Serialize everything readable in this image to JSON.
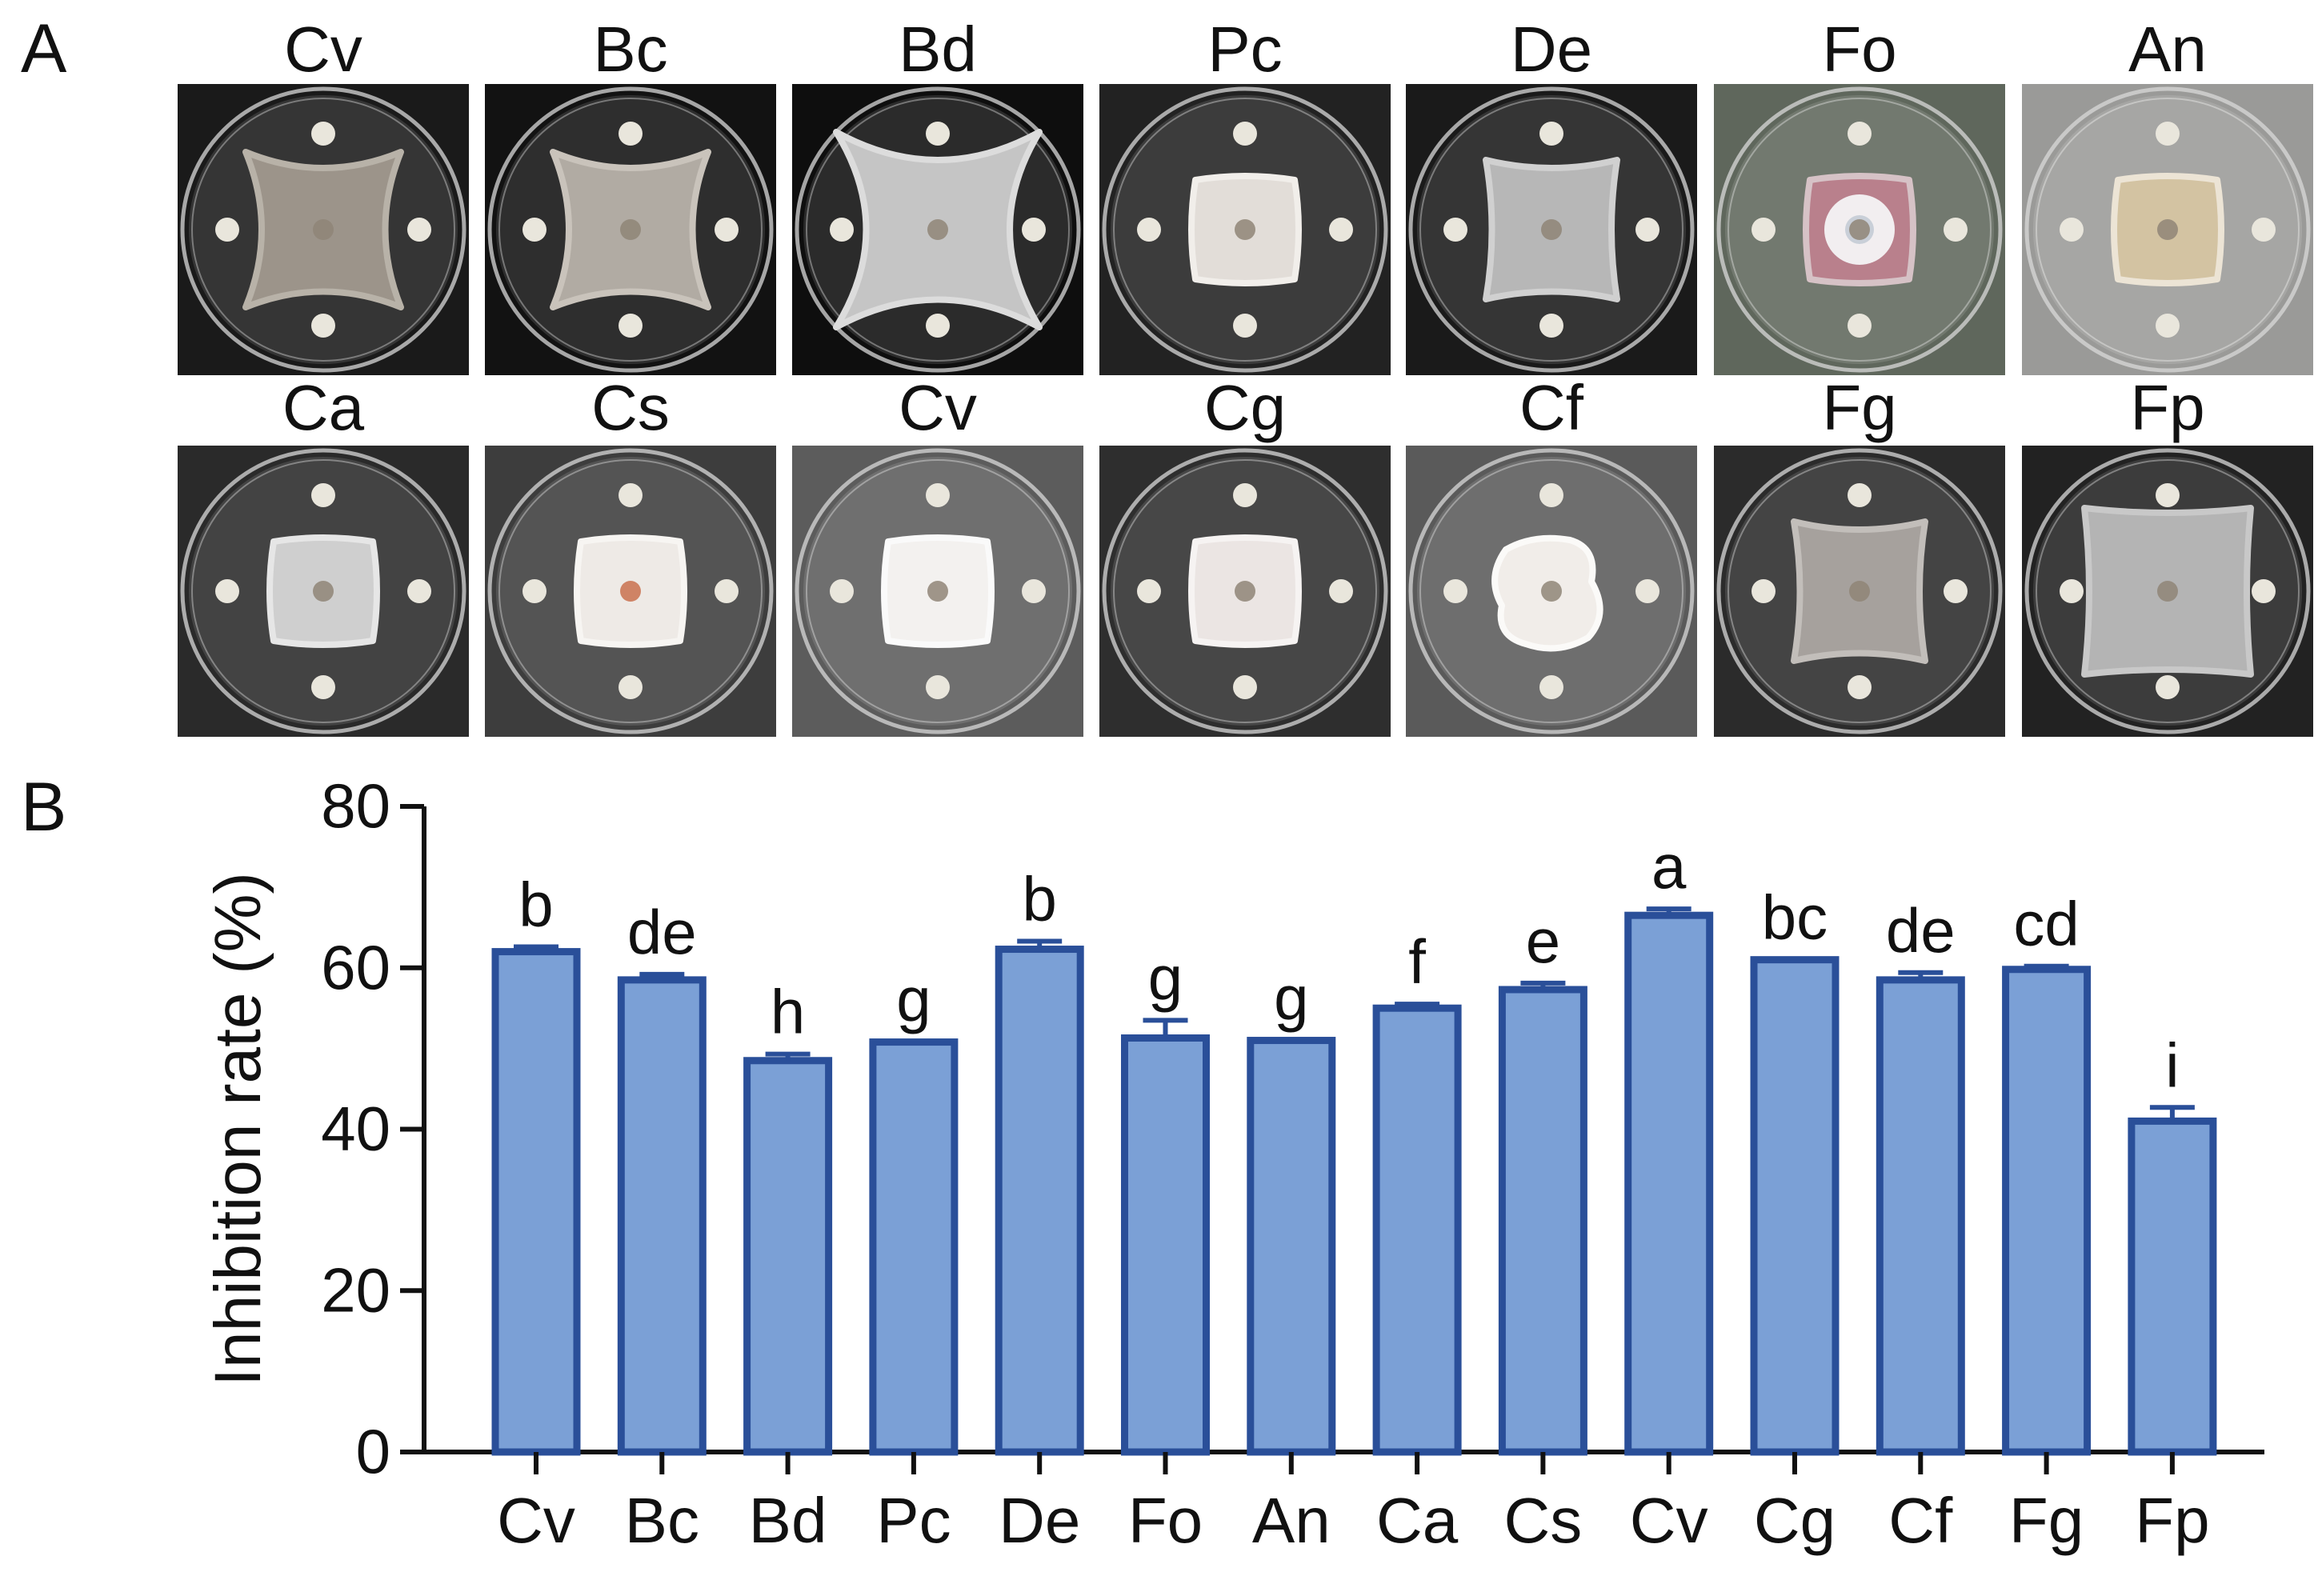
{
  "panels": {
    "a_label": "A",
    "b_label": "B"
  },
  "plates": {
    "row1": [
      {
        "label": "Cv",
        "colony": "star-grey",
        "colony_color": "#9c948a",
        "edge_color": "#b8b2a8",
        "bg": "#1a1a1a"
      },
      {
        "label": "Bc",
        "colony": "star-grey",
        "colony_color": "#b1aba3",
        "edge_color": "#c9c3bb",
        "bg": "#121212"
      },
      {
        "label": "Bd",
        "colony": "star-fluffy",
        "colony_color": "#c5c5c5",
        "edge_color": "#dcdcdc",
        "bg": "#0e0e0e"
      },
      {
        "label": "Pc",
        "colony": "square",
        "colony_color": "#e2ddd8",
        "edge_color": "#f1eeea",
        "bg": "#222222"
      },
      {
        "label": "De",
        "colony": "square-fluffy",
        "colony_color": "#b7b7b7",
        "edge_color": "#d0d0d0",
        "bg": "#1a1a1a"
      },
      {
        "label": "Fo",
        "colony": "pink-ring",
        "colony_color": "#b9808c",
        "edge_color": "#d6c2c6",
        "bg": "#5f675c"
      },
      {
        "label": "An",
        "colony": "tan",
        "colony_color": "#d3c3a2",
        "edge_color": "#ece4d5",
        "bg": "#9a9a98"
      }
    ],
    "row2": [
      {
        "label": "Ca",
        "colony": "square",
        "colony_color": "#cfcfcf",
        "edge_color": "#e6e6e6",
        "bg": "#2a2a2a"
      },
      {
        "label": "Cs",
        "colony": "square-red",
        "colony_color": "#eeeae6",
        "edge_color": "#f7f5f2",
        "bg": "#3d3d3d"
      },
      {
        "label": "Cv",
        "colony": "square",
        "colony_color": "#f3f1ef",
        "edge_color": "#fafafa",
        "bg": "#5c5c5c"
      },
      {
        "label": "Cg",
        "colony": "square",
        "colony_color": "#ebe5e3",
        "edge_color": "#f6f3f2",
        "bg": "#2e2e2e"
      },
      {
        "label": "Cf",
        "colony": "irregular",
        "colony_color": "#f1ede9",
        "edge_color": "#fbfaf8",
        "bg": "#5a5a5a"
      },
      {
        "label": "Fg",
        "colony": "square-fluffy",
        "colony_color": "#a6a19d",
        "edge_color": "#c2beba",
        "bg": "#2b2b2b"
      },
      {
        "label": "Fp",
        "colony": "square-big",
        "colony_color": "#b4b4b4",
        "edge_color": "#c8c8c8",
        "bg": "#222222"
      }
    ]
  },
  "chart_data": {
    "type": "bar",
    "title": "",
    "xlabel": "",
    "ylabel": "Inhibition rate (%)",
    "ylim": [
      0,
      80
    ],
    "yticks": [
      0,
      20,
      40,
      60,
      80
    ],
    "categories": [
      "Cv",
      "Bc",
      "Bd",
      "Pc",
      "De",
      "Fo",
      "An",
      "Ca",
      "Cs",
      "Cv",
      "Cg",
      "Cf",
      "Fg",
      "Fp"
    ],
    "values": [
      62.0,
      58.5,
      48.5,
      50.8,
      62.3,
      51.3,
      51.0,
      55.0,
      57.3,
      66.5,
      61.0,
      58.5,
      59.8,
      41.0
    ],
    "errors": [
      0.6,
      0.7,
      0.8,
      0.0,
      1.0,
      2.2,
      0.0,
      0.5,
      0.8,
      0.8,
      0.0,
      0.9,
      0.4,
      1.7
    ],
    "letters": [
      "b",
      "de",
      "h",
      "g",
      "b",
      "g",
      "g",
      "f",
      "e",
      "a",
      "bc",
      "de",
      "cd",
      "i"
    ],
    "bar_fill": "#7ba0d6",
    "bar_edge": "#2a4f99"
  }
}
